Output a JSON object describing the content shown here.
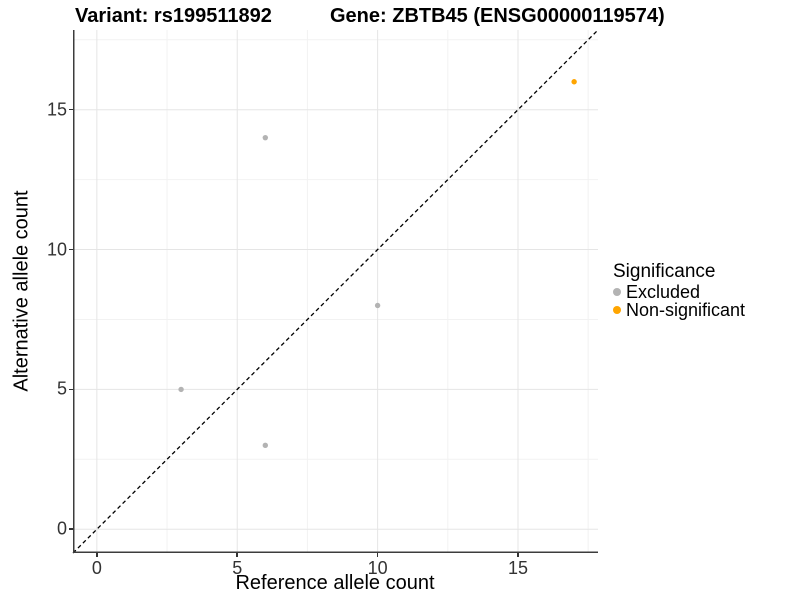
{
  "header": {
    "left_title": "Variant: rs199511892",
    "right_title": "Gene: ZBTB45 (ENSG00000119574)"
  },
  "colors": {
    "background": "#ffffff",
    "grid_major": "#e5e5e5",
    "grid_minor": "#f2f2f2",
    "axis_line": "#3c3c3c",
    "tick_mark": "#333333",
    "tick_label": "#333333",
    "identity_line": "#000000",
    "excluded": "#b3b3b3",
    "non_significant": "#ffa500",
    "text": "#000000"
  },
  "chart_data": {
    "type": "scatter",
    "title_left": "Variant: rs199511892",
    "title_right": "Gene: ZBTB45 (ENSG00000119574)",
    "xlabel": "Reference allele count",
    "ylabel": "Alternative allele count",
    "xlim": [
      -0.85,
      17.85
    ],
    "ylim": [
      -0.85,
      17.85
    ],
    "x_ticks": [
      0,
      5,
      10,
      15
    ],
    "y_ticks": [
      0,
      5,
      10,
      15
    ],
    "x_minor_ticks": [
      2.5,
      7.5,
      12.5,
      17.5
    ],
    "y_minor_ticks": [
      2.5,
      7.5,
      12.5,
      17.5
    ],
    "grid": true,
    "point_radius": 2.7,
    "identity_line": {
      "slope": 1,
      "intercept": 0,
      "style": "dashed"
    },
    "legend": {
      "title": "Significance",
      "position": "right",
      "items": [
        {
          "label": "Excluded",
          "color": "#b3b3b3"
        },
        {
          "label": "Non-significant",
          "color": "#ffa500"
        }
      ]
    },
    "series": [
      {
        "name": "Excluded",
        "color": "#b3b3b3",
        "points": [
          [
            3,
            5
          ],
          [
            6,
            3
          ],
          [
            6,
            14
          ],
          [
            10,
            8
          ]
        ]
      },
      {
        "name": "Non-significant",
        "color": "#ffa500",
        "points": [
          [
            17,
            16
          ]
        ]
      }
    ]
  }
}
